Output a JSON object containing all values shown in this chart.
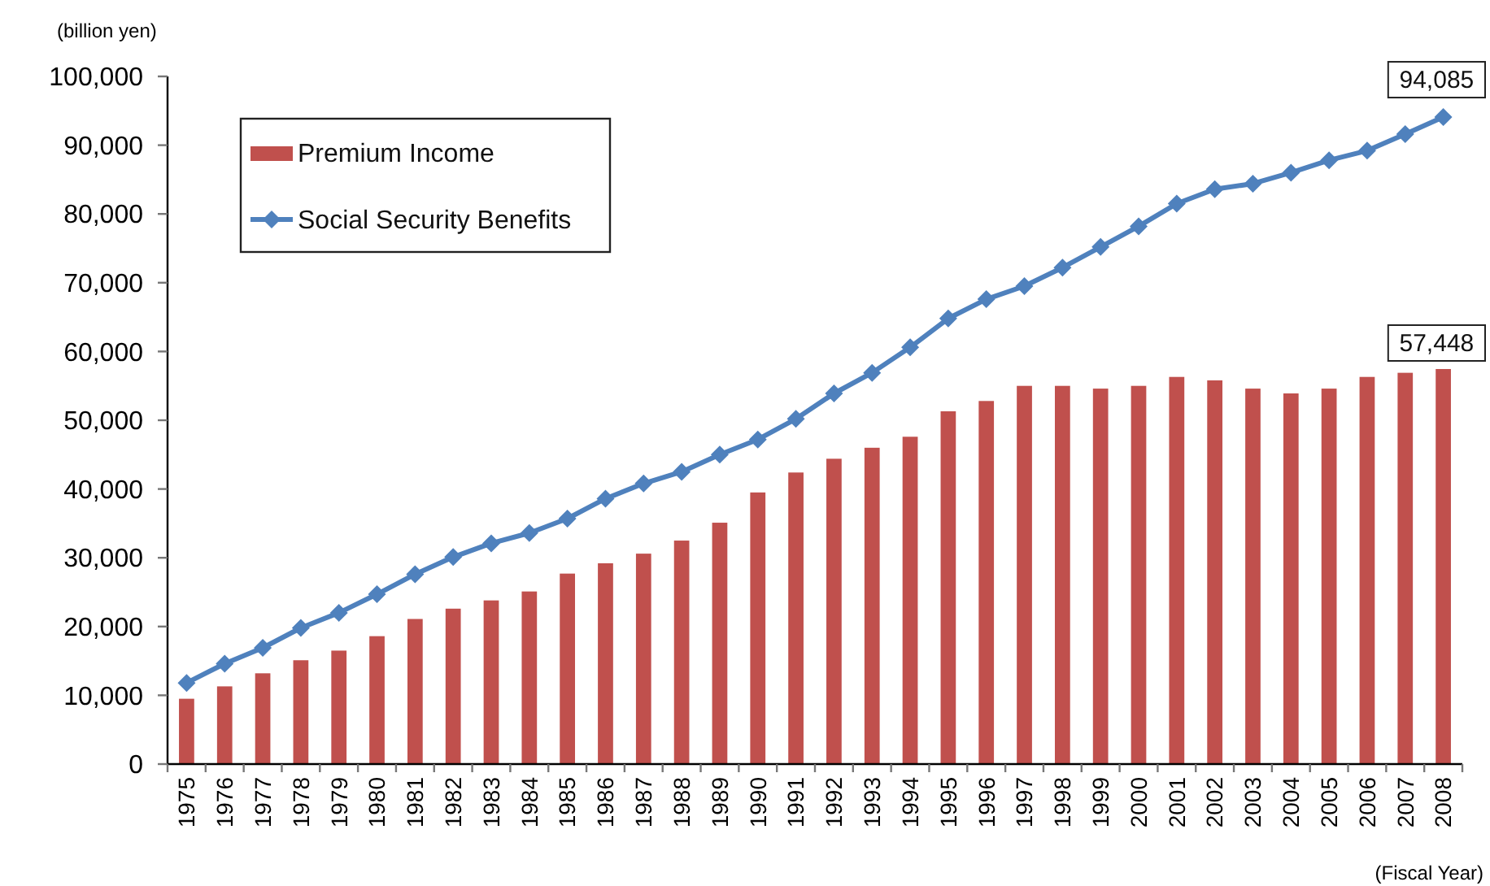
{
  "chart_data": {
    "type": "bar",
    "xlabel": "(Fiscal Year)",
    "ylabel": "(billion yen)",
    "categories": [
      "1975",
      "1976",
      "1977",
      "1978",
      "1979",
      "1980",
      "1981",
      "1982",
      "1983",
      "1984",
      "1985",
      "1986",
      "1987",
      "1988",
      "1989",
      "1990",
      "1991",
      "1992",
      "1993",
      "1994",
      "1995",
      "1996",
      "1997",
      "1998",
      "1999",
      "2000",
      "2001",
      "2002",
      "2003",
      "2004",
      "2005",
      "2006",
      "2007",
      "2008"
    ],
    "series": [
      {
        "name": "Premium Income",
        "color": "#c0504d",
        "values": [
          9500,
          11300,
          13200,
          15100,
          16500,
          18600,
          21100,
          22600,
          23800,
          25100,
          27700,
          29200,
          30600,
          32500,
          35100,
          39500,
          42400,
          44400,
          46000,
          47600,
          51300,
          52800,
          55000,
          55000,
          54600,
          55000,
          56300,
          55800,
          54600,
          53900,
          54600,
          56300,
          56900,
          57448
        ],
        "value_labels": [
          null,
          null,
          null,
          null,
          null,
          null,
          null,
          null,
          null,
          null,
          null,
          null,
          null,
          null,
          null,
          null,
          null,
          null,
          null,
          null,
          null,
          null,
          null,
          null,
          null,
          null,
          null,
          null,
          null,
          null,
          null,
          null,
          null,
          "57,448"
        ]
      },
      {
        "name": "Social Security Benefits",
        "type": "line",
        "color": "#4f81bd",
        "marker": "diamond",
        "values": [
          11800,
          14600,
          16900,
          19800,
          22000,
          24700,
          27600,
          30100,
          32100,
          33600,
          35700,
          38600,
          40800,
          42500,
          45000,
          47200,
          50200,
          53900,
          56900,
          60600,
          64800,
          67600,
          69500,
          72200,
          75200,
          78200,
          81500,
          83600,
          84400,
          86000,
          87800,
          89200,
          91600,
          94085
        ],
        "value_labels": [
          null,
          null,
          null,
          null,
          null,
          null,
          null,
          null,
          null,
          null,
          null,
          null,
          null,
          null,
          null,
          null,
          null,
          null,
          null,
          null,
          null,
          null,
          null,
          null,
          null,
          null,
          null,
          null,
          null,
          null,
          null,
          null,
          null,
          "94,085"
        ]
      }
    ],
    "ylim": [
      0,
      100000
    ],
    "yticks": [
      {
        "value": 0,
        "label": "0"
      },
      {
        "value": 10000,
        "label": "10,000"
      },
      {
        "value": 20000,
        "label": "20,000"
      },
      {
        "value": 30000,
        "label": "30,000"
      },
      {
        "value": 40000,
        "label": "40,000"
      },
      {
        "value": 50000,
        "label": "50,000"
      },
      {
        "value": 60000,
        "label": "60,000"
      },
      {
        "value": 70000,
        "label": "70,000"
      },
      {
        "value": 80000,
        "label": "80,000"
      },
      {
        "value": 90000,
        "label": "90,000"
      },
      {
        "value": 100000,
        "label": "100,000"
      }
    ],
    "legend": "top left"
  }
}
